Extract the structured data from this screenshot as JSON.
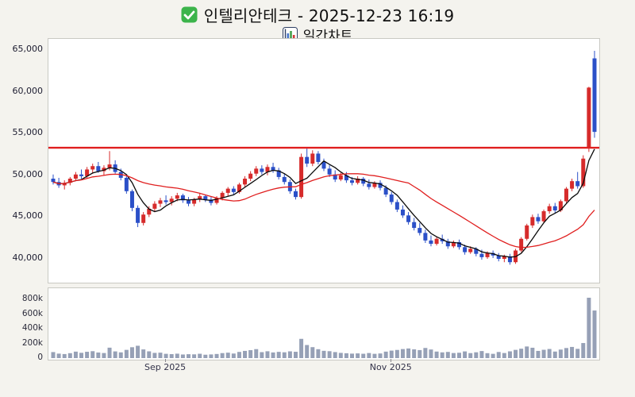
{
  "header": {
    "title": "인텔리안테크 - 2025-12-23 16:19",
    "subtitle": "일간차트",
    "title_icon": "green-check-icon",
    "subtitle_icon": "bar-chart-icon"
  },
  "colors": {
    "up": "#d62b2b",
    "down": "#2b50c8",
    "ma_short": "#0a0a0a",
    "ma_long": "#e01f1f",
    "reference_line": "#e01f1f",
    "volume_bar": "#96a0b6",
    "background": "#f4f3ee"
  },
  "chart_data": {
    "type": "candlestick",
    "title": "인텔리안테크 - 2025-12-23 16:19",
    "subtitle": "일간차트",
    "reference_line": 53300,
    "y_axis": {
      "ticks": [
        {
          "value": 65000,
          "label": "65,000"
        },
        {
          "value": 60000,
          "label": "60,000"
        },
        {
          "value": 55000,
          "label": "55,000"
        },
        {
          "value": 50000,
          "label": "50,000"
        },
        {
          "value": 45000,
          "label": "45,000"
        },
        {
          "value": 40000,
          "label": "40,000"
        }
      ],
      "range_top": 66300,
      "range_bottom": 37150
    },
    "volume_axis": {
      "ticks": [
        {
          "value": 800000,
          "label": "800k"
        },
        {
          "value": 600000,
          "label": "600k"
        },
        {
          "value": 400000,
          "label": "400k"
        },
        {
          "value": 200000,
          "label": "200k"
        },
        {
          "value": 0,
          "label": "0"
        }
      ]
    },
    "x_axis": {
      "month_labels": [
        {
          "label": "Sep 2025",
          "index": 20
        },
        {
          "label": "Nov 2025",
          "index": 60
        }
      ]
    },
    "moving_averages": [
      {
        "name": "short",
        "window": 5,
        "color_key": "ma_short"
      },
      {
        "name": "long",
        "window": 20,
        "color_key": "ma_long"
      }
    ],
    "candle_fields": [
      "date",
      "open",
      "high",
      "low",
      "close",
      "volume"
    ],
    "candles": [
      [
        "2025-08-01",
        49600,
        50100,
        48900,
        49200,
        82000
      ],
      [
        "2025-08-04",
        49200,
        49700,
        48500,
        48800,
        61000
      ],
      [
        "2025-08-05",
        48800,
        49400,
        48300,
        49100,
        55000
      ],
      [
        "2025-08-06",
        49100,
        49800,
        48800,
        49600,
        67000
      ],
      [
        "2025-08-07",
        49600,
        50400,
        49300,
        50100,
        88000
      ],
      [
        "2025-08-08",
        50100,
        50700,
        49600,
        49900,
        72000
      ],
      [
        "2025-08-11",
        49900,
        51000,
        49700,
        50700,
        86000
      ],
      [
        "2025-08-12",
        50700,
        51400,
        50200,
        51100,
        94000
      ],
      [
        "2025-08-13",
        51100,
        51600,
        50300,
        50500,
        76000
      ],
      [
        "2025-08-14",
        50500,
        51200,
        50000,
        50900,
        69000
      ],
      [
        "2025-08-18",
        50900,
        52900,
        50600,
        51300,
        142000
      ],
      [
        "2025-08-19",
        51300,
        51800,
        50200,
        50400,
        91000
      ],
      [
        "2025-08-20",
        50400,
        50800,
        49400,
        49700,
        78000
      ],
      [
        "2025-08-21",
        49700,
        49900,
        47800,
        48100,
        112000
      ],
      [
        "2025-08-22",
        48100,
        48300,
        45700,
        46100,
        148000
      ],
      [
        "2025-08-25",
        46100,
        46400,
        43800,
        44300,
        168000
      ],
      [
        "2025-08-26",
        44300,
        45600,
        44000,
        45300,
        118000
      ],
      [
        "2025-08-27",
        45300,
        46300,
        45000,
        46000,
        92000
      ],
      [
        "2025-08-28",
        46000,
        46900,
        45600,
        46600,
        71000
      ],
      [
        "2025-08-29",
        46600,
        47300,
        46200,
        47000,
        74000
      ],
      [
        "2025-09-01",
        47000,
        47600,
        46500,
        46800,
        58000
      ],
      [
        "2025-09-02",
        46800,
        47500,
        46400,
        47200,
        54000
      ],
      [
        "2025-09-03",
        47200,
        47900,
        46900,
        47600,
        60000
      ],
      [
        "2025-09-04",
        47600,
        47800,
        46700,
        47000,
        49000
      ],
      [
        "2025-09-05",
        47000,
        47400,
        46300,
        46600,
        53000
      ],
      [
        "2025-09-08",
        46600,
        47300,
        46300,
        47100,
        51000
      ],
      [
        "2025-09-09",
        47100,
        47800,
        46800,
        47500,
        59000
      ],
      [
        "2025-09-10",
        47500,
        47700,
        46800,
        47100,
        46000
      ],
      [
        "2025-09-11",
        47100,
        47400,
        46400,
        46700,
        50000
      ],
      [
        "2025-09-12",
        46700,
        47500,
        46500,
        47300,
        56000
      ],
      [
        "2025-09-15",
        47300,
        48100,
        47000,
        47900,
        68000
      ],
      [
        "2025-09-16",
        47900,
        48600,
        47500,
        48400,
        74000
      ],
      [
        "2025-09-17",
        48400,
        48700,
        47700,
        48000,
        62000
      ],
      [
        "2025-09-18",
        48000,
        49100,
        47800,
        48900,
        84000
      ],
      [
        "2025-09-19",
        48900,
        49900,
        48600,
        49600,
        98000
      ],
      [
        "2025-09-22",
        49600,
        50500,
        49300,
        50200,
        108000
      ],
      [
        "2025-09-23",
        50200,
        51100,
        49900,
        50800,
        122000
      ],
      [
        "2025-09-24",
        50800,
        51200,
        50100,
        50400,
        81000
      ],
      [
        "2025-09-25",
        50400,
        51300,
        50000,
        51000,
        93000
      ],
      [
        "2025-09-26",
        51000,
        51500,
        50300,
        50600,
        77000
      ],
      [
        "2025-09-29",
        50600,
        50900,
        49500,
        49800,
        85000
      ],
      [
        "2025-09-30",
        49800,
        50200,
        48900,
        49200,
        79000
      ],
      [
        "2025-10-01",
        49200,
        49500,
        47800,
        48100,
        92000
      ],
      [
        "2025-10-02",
        48100,
        48400,
        47100,
        47400,
        86000
      ],
      [
        "2025-10-10",
        47400,
        52600,
        47200,
        52200,
        262000
      ],
      [
        "2025-10-13",
        52200,
        53200,
        51000,
        51400,
        178000
      ],
      [
        "2025-10-14",
        51400,
        53000,
        51100,
        52600,
        149000
      ],
      [
        "2025-10-15",
        52600,
        52900,
        51300,
        51600,
        121000
      ],
      [
        "2025-10-16",
        51600,
        52000,
        50500,
        50800,
        99000
      ],
      [
        "2025-10-17",
        50800,
        51200,
        49800,
        50100,
        94000
      ],
      [
        "2025-10-20",
        50100,
        50600,
        49200,
        49500,
        82000
      ],
      [
        "2025-10-21",
        49500,
        50300,
        49300,
        50000,
        71000
      ],
      [
        "2025-10-22",
        50000,
        50400,
        49100,
        49400,
        66000
      ],
      [
        "2025-10-23",
        49400,
        49800,
        48800,
        49100,
        61000
      ],
      [
        "2025-10-24",
        49100,
        49900,
        48900,
        49600,
        64000
      ],
      [
        "2025-10-27",
        49600,
        49800,
        48700,
        49000,
        59000
      ],
      [
        "2025-10-28",
        49000,
        49500,
        48300,
        48600,
        69000
      ],
      [
        "2025-10-29",
        48600,
        49300,
        48400,
        49100,
        58000
      ],
      [
        "2025-10-30",
        49100,
        49400,
        48200,
        48500,
        63000
      ],
      [
        "2025-10-31",
        48500,
        48800,
        47400,
        47700,
        88000
      ],
      [
        "2025-11-03",
        47700,
        48000,
        46500,
        46800,
        102000
      ],
      [
        "2025-11-04",
        46800,
        47100,
        45600,
        45900,
        111000
      ],
      [
        "2025-11-05",
        45900,
        46400,
        44900,
        45200,
        123000
      ],
      [
        "2025-11-06",
        45200,
        45600,
        44100,
        44400,
        131000
      ],
      [
        "2025-11-07",
        44400,
        44900,
        43400,
        43700,
        119000
      ],
      [
        "2025-11-10",
        43700,
        44300,
        42800,
        43100,
        109000
      ],
      [
        "2025-11-11",
        43100,
        43500,
        41900,
        42200,
        138000
      ],
      [
        "2025-11-12",
        42200,
        42800,
        41500,
        41800,
        117000
      ],
      [
        "2025-11-13",
        41800,
        42600,
        41600,
        42400,
        89000
      ],
      [
        "2025-11-14",
        42400,
        42900,
        41800,
        42100,
        78000
      ],
      [
        "2025-11-17",
        42100,
        42400,
        41200,
        41500,
        84000
      ],
      [
        "2025-11-18",
        41500,
        42200,
        41300,
        42000,
        69000
      ],
      [
        "2025-11-19",
        42000,
        42300,
        41100,
        41400,
        73000
      ],
      [
        "2025-11-20",
        41400,
        41700,
        40500,
        40800,
        91000
      ],
      [
        "2025-11-21",
        40800,
        41500,
        40600,
        41200,
        68000
      ],
      [
        "2025-11-24",
        41200,
        41400,
        40300,
        40600,
        79000
      ],
      [
        "2025-11-25",
        40600,
        41100,
        39900,
        40200,
        96000
      ],
      [
        "2025-11-26",
        40200,
        40900,
        40000,
        40700,
        67000
      ],
      [
        "2025-11-27",
        40700,
        41000,
        40100,
        40400,
        58000
      ],
      [
        "2025-11-28",
        40400,
        40700,
        39700,
        40000,
        83000
      ],
      [
        "2025-12-01",
        40000,
        40500,
        39600,
        40300,
        69000
      ],
      [
        "2025-12-02",
        40300,
        40600,
        39300,
        39600,
        92000
      ],
      [
        "2025-12-03",
        39600,
        41200,
        39400,
        41000,
        112000
      ],
      [
        "2025-12-04",
        41000,
        42600,
        40800,
        42400,
        128000
      ],
      [
        "2025-12-05",
        42400,
        44200,
        42200,
        44000,
        158000
      ],
      [
        "2025-12-08",
        44000,
        45300,
        43700,
        45000,
        141000
      ],
      [
        "2025-12-09",
        45000,
        45400,
        44200,
        44500,
        98000
      ],
      [
        "2025-12-10",
        44500,
        45900,
        44300,
        45700,
        113000
      ],
      [
        "2025-12-11",
        45700,
        46600,
        45400,
        46300,
        124000
      ],
      [
        "2025-12-12",
        46300,
        46700,
        45500,
        45800,
        89000
      ],
      [
        "2025-12-15",
        45800,
        47100,
        45600,
        46900,
        116000
      ],
      [
        "2025-12-16",
        46900,
        48600,
        46700,
        48400,
        137000
      ],
      [
        "2025-12-17",
        48400,
        49600,
        48100,
        49300,
        152000
      ],
      [
        "2025-12-18",
        49300,
        50400,
        48400,
        48700,
        126000
      ],
      [
        "2025-12-19",
        48700,
        52400,
        48500,
        52000,
        205000
      ],
      [
        "2025-12-22",
        53300,
        60600,
        52800,
        60500,
        822000
      ],
      [
        "2025-12-23",
        64000,
        64900,
        54500,
        55200,
        648000
      ]
    ]
  }
}
